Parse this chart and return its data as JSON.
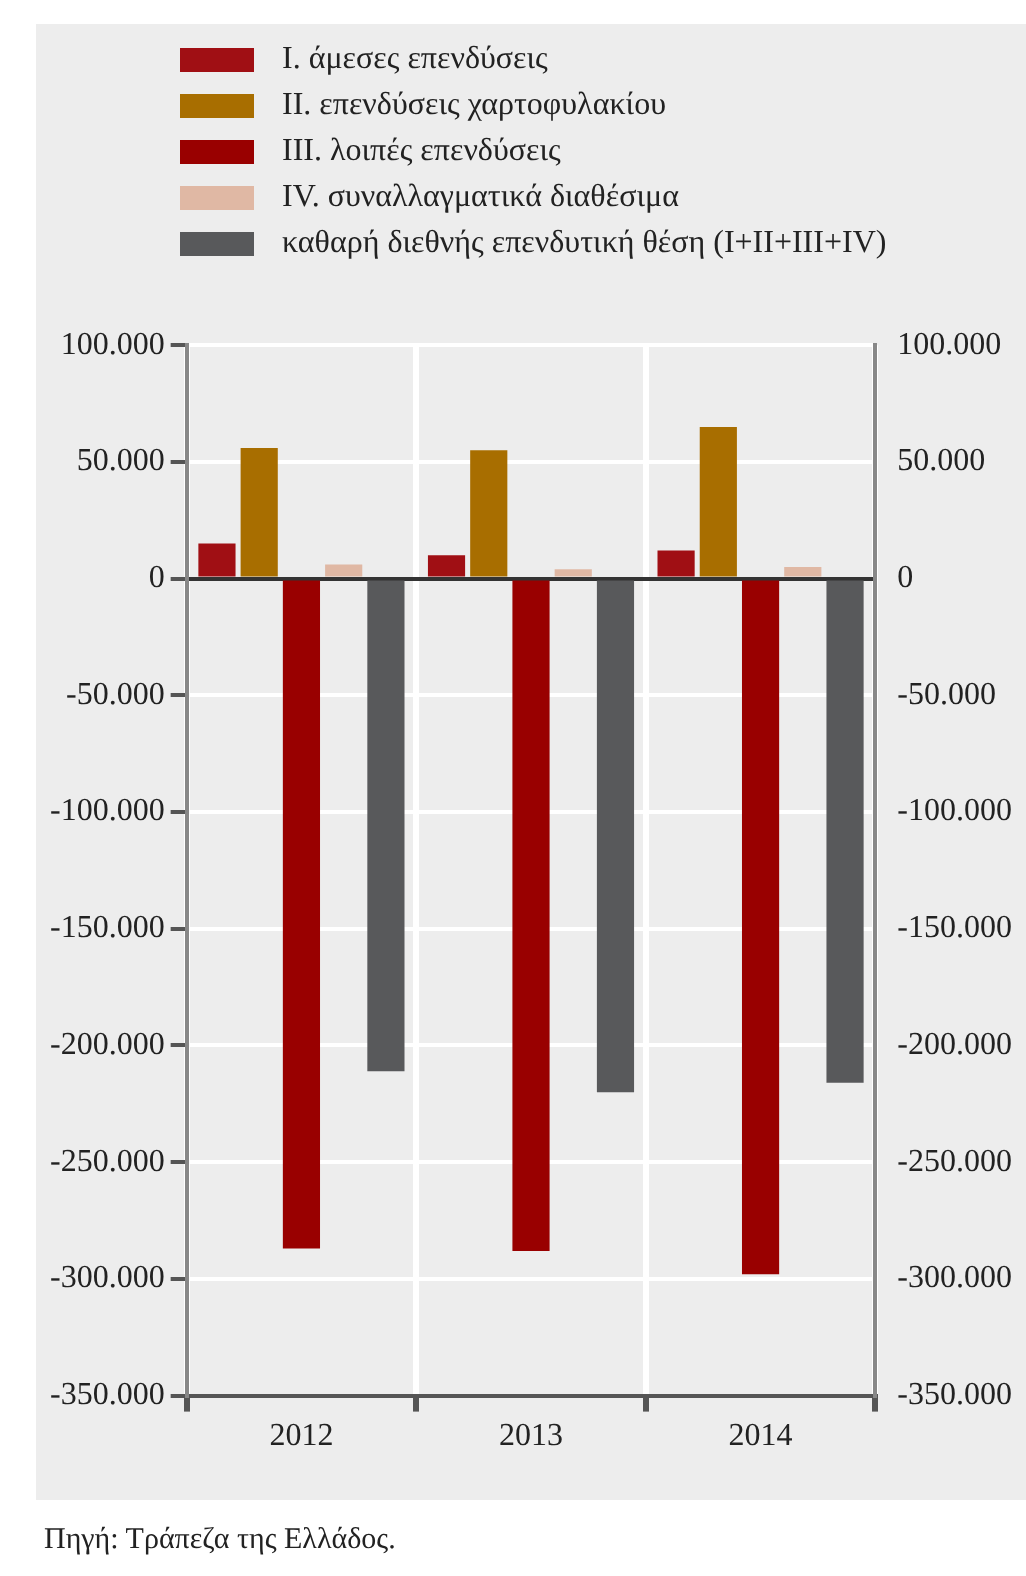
{
  "chart_data": {
    "type": "bar",
    "categories": [
      "2012",
      "2013",
      "2014"
    ],
    "series": [
      {
        "name": "I. άμεσες επενδύσεις",
        "color": "#a00f14",
        "values": [
          15000,
          10000,
          12000
        ]
      },
      {
        "name": "II. επενδύσεις χαρτοφυλακίου",
        "color": "#a86e00",
        "values": [
          56000,
          55000,
          65000
        ]
      },
      {
        "name": "III. λοιπές επενδύσεις",
        "color": "#990000",
        "values": [
          -287000,
          -288000,
          -298000
        ]
      },
      {
        "name": "IV. συναλλαγματικά διαθέσιμα",
        "color": "#e0b8a4",
        "values": [
          6000,
          4000,
          5000
        ]
      },
      {
        "name": "καθαρή διεθνής επενδυτική θέση (I+II+III+IV)",
        "color": "#58595b",
        "values": [
          -211000,
          -220000,
          -216000
        ]
      }
    ],
    "ylim": [
      -350000,
      100000
    ],
    "yticks": [
      {
        "value": -350000,
        "label": "-350.000"
      },
      {
        "value": -300000,
        "label": "-300.000"
      },
      {
        "value": -250000,
        "label": "-250.000"
      },
      {
        "value": -200000,
        "label": "-200.000"
      },
      {
        "value": -150000,
        "label": "-150.000"
      },
      {
        "value": -100000,
        "label": "-100.000"
      },
      {
        "value": -50000,
        "label": "-50.000"
      },
      {
        "value": 0,
        "label": "0"
      },
      {
        "value": 50000,
        "label": "50.000"
      },
      {
        "value": 100000,
        "label": "100.000"
      }
    ],
    "y2lim": [
      -350000,
      100000
    ],
    "y2ticks": [
      {
        "value": -350000,
        "label": "-350.000"
      },
      {
        "value": -300000,
        "label": "-300.000"
      },
      {
        "value": -250000,
        "label": "-250.000"
      },
      {
        "value": -200000,
        "label": "-200.000"
      },
      {
        "value": -150000,
        "label": "-150.000"
      },
      {
        "value": -100000,
        "label": "-100.000"
      },
      {
        "value": -50000,
        "label": "-50.000"
      },
      {
        "value": 0,
        "label": "0"
      },
      {
        "value": 50000,
        "label": "50.000"
      },
      {
        "value": 100000,
        "label": "100.000"
      }
    ],
    "grid": true,
    "legend": "top",
    "annotations": [
      "Πηγή: Τράπεζα της Ελλάδος."
    ]
  }
}
